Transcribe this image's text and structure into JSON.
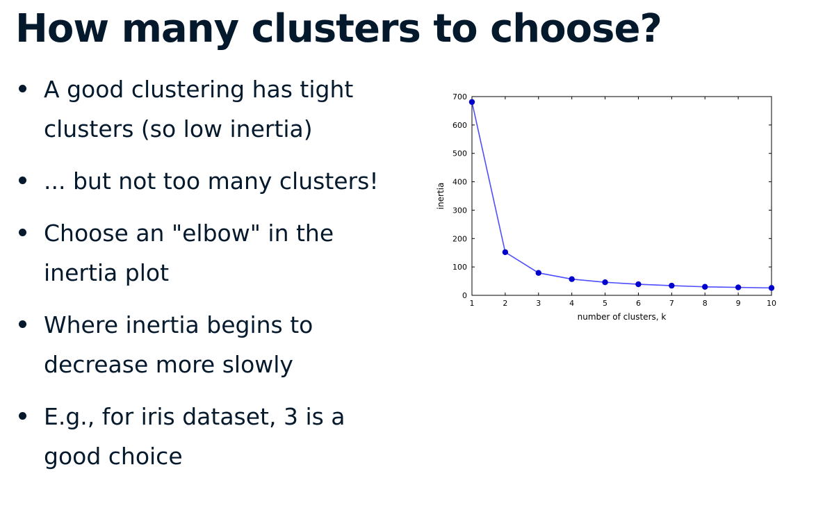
{
  "slide": {
    "title": "How many clusters to choose?",
    "bullets": [
      {
        "lines": [
          "A good clustering has tight",
          "clusters (so low inertia)"
        ]
      },
      {
        "lines": [
          "... but not too many clusters!"
        ]
      },
      {
        "lines": [
          "Choose an \"elbow\" in the",
          "inertia plot"
        ]
      },
      {
        "lines": [
          "Where inertia begins to",
          "decrease more slowly"
        ]
      },
      {
        "lines": [
          "E.g., for iris dataset, 3 is a",
          "good choice"
        ]
      }
    ]
  },
  "colors": {
    "text": "#05192d",
    "line": "#4d4dff",
    "marker": "#0000cc"
  },
  "chart_data": {
    "type": "line",
    "x": [
      1,
      2,
      3,
      4,
      5,
      6,
      7,
      8,
      9,
      10
    ],
    "series": [
      {
        "values": [
          681,
          152,
          79,
          57,
          46,
          39,
          34,
          30,
          28,
          26
        ]
      }
    ],
    "xlabel": "number of clusters, k",
    "ylabel": "inertia",
    "xlim": [
      1,
      10
    ],
    "ylim": [
      0,
      700
    ],
    "xticks": [
      "1",
      "2",
      "3",
      "4",
      "5",
      "6",
      "7",
      "8",
      "9",
      "10"
    ],
    "yticks": [
      "0",
      "100",
      "200",
      "300",
      "400",
      "500",
      "600",
      "700"
    ],
    "grid": false,
    "markers": true
  }
}
